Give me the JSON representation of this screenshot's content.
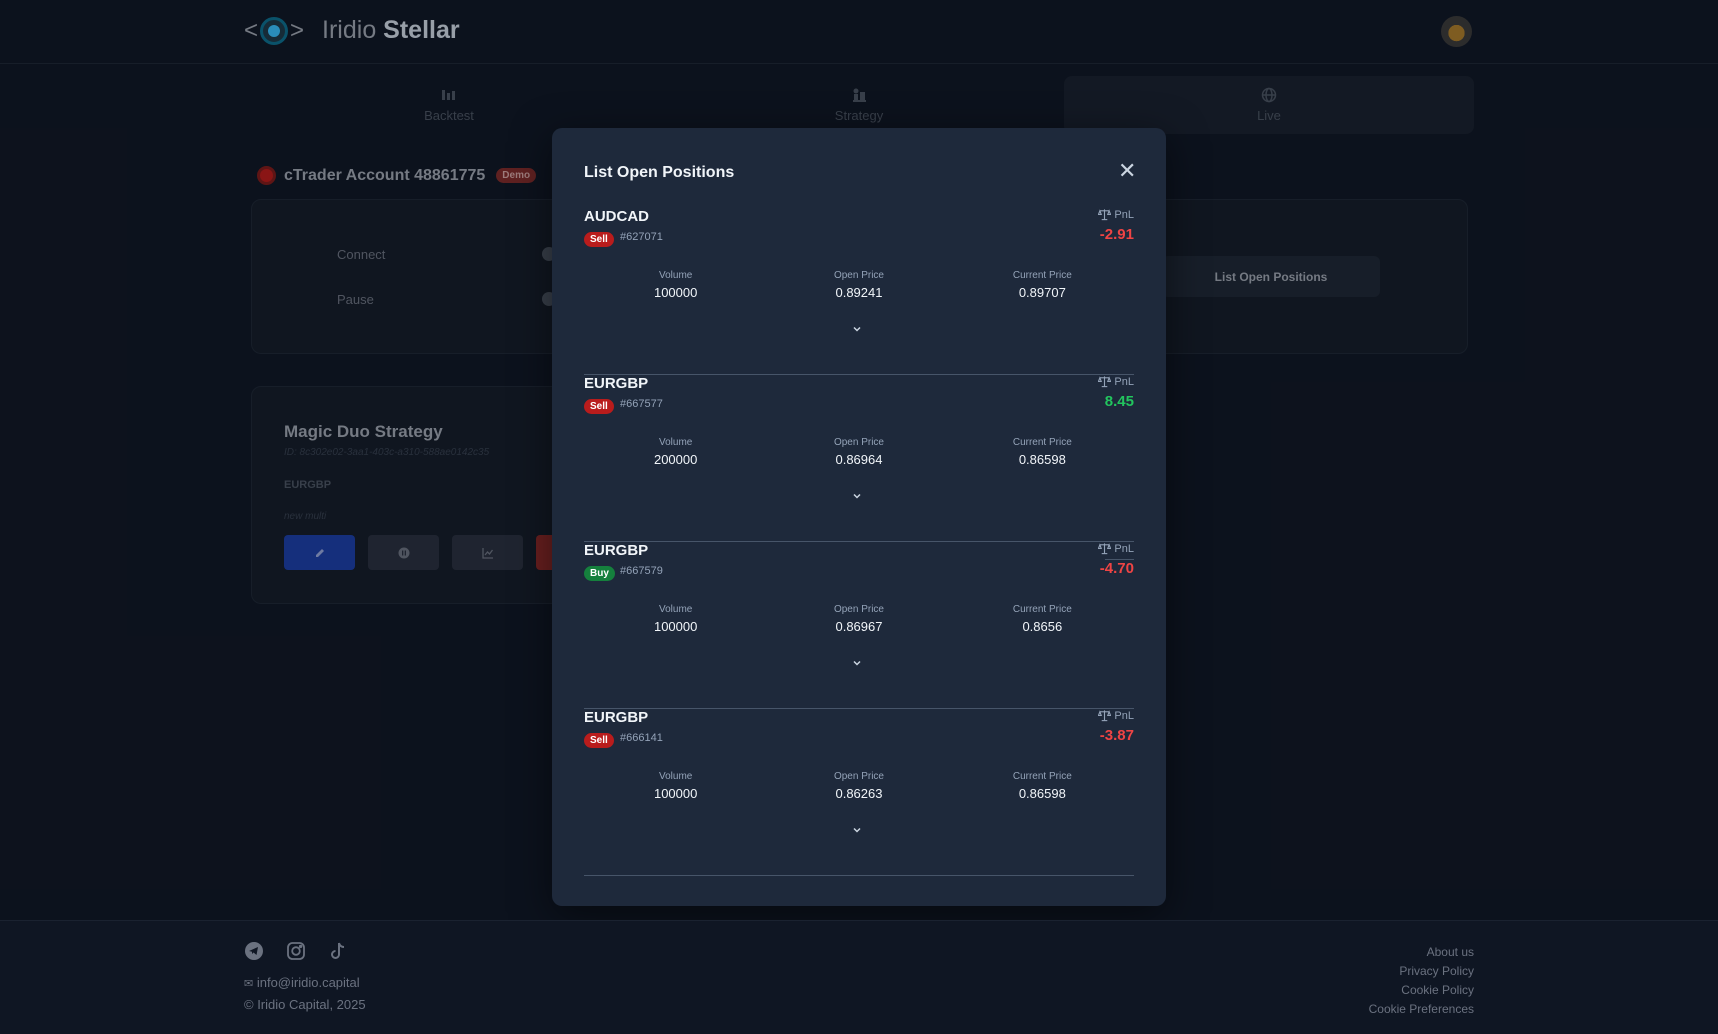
{
  "app": {
    "logo_light": "Iridio",
    "logo_bold": "Stellar"
  },
  "tabs": [
    {
      "label": "Backtest",
      "icon": "chart-icon"
    },
    {
      "label": "Strategy",
      "icon": "chess-icon"
    },
    {
      "label": "Live",
      "icon": "globe-icon"
    }
  ],
  "account": {
    "title": "cTrader Account 48861775",
    "badge": "Demo",
    "connect_label": "Connect",
    "pause_label": "Pause",
    "list_positions_button": "List Open Positions"
  },
  "strategy": {
    "name": "Magic Duo Strategy",
    "id": "ID: 8c302e02-3aa1-403c-a310-588ae0142c35",
    "symbol": "EURGBP",
    "description": "new multi"
  },
  "modal": {
    "title": "List Open Positions",
    "pnl_label": "PnL",
    "volume_label": "Volume",
    "open_price_label": "Open Price",
    "current_price_label": "Current Price",
    "positions": [
      {
        "symbol": "AUDCAD",
        "side": "Sell",
        "id": "#627071",
        "pnl": "-2.91",
        "volume": "100000",
        "open_price": "0.89241",
        "current_price": "0.89707"
      },
      {
        "symbol": "EURGBP",
        "side": "Sell",
        "id": "#667577",
        "pnl": "8.45",
        "volume": "200000",
        "open_price": "0.86964",
        "current_price": "0.86598"
      },
      {
        "symbol": "EURGBP",
        "side": "Buy",
        "id": "#667579",
        "pnl": "-4.70",
        "volume": "100000",
        "open_price": "0.86967",
        "current_price": "0.8656"
      },
      {
        "symbol": "EURGBP",
        "side": "Sell",
        "id": "#666141",
        "pnl": "-3.87",
        "volume": "100000",
        "open_price": "0.86263",
        "current_price": "0.86598"
      }
    ]
  },
  "footer": {
    "email": "info@iridio.capital",
    "copyright": "© Iridio Capital, 2025",
    "links": [
      "About us",
      "Privacy Policy",
      "Cookie Policy",
      "Cookie Preferences"
    ]
  },
  "colors": {
    "negative": "#ef4444",
    "positive": "#22c55e",
    "sell": "#b91c1c",
    "buy": "#15803d",
    "accent": "#1d4ed8"
  }
}
